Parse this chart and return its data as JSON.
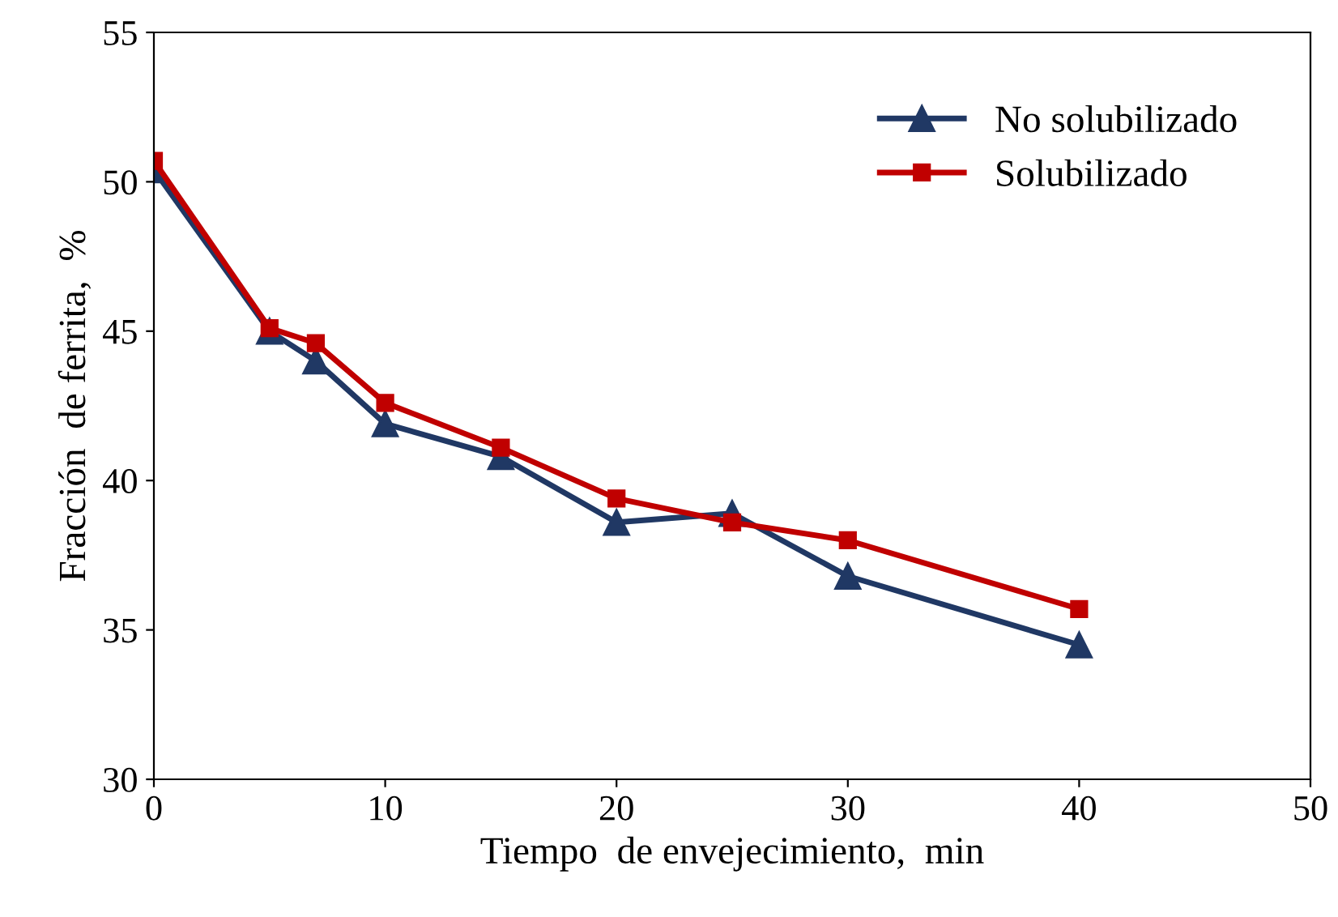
{
  "chart_data": {
    "type": "line",
    "xlabel": "Tiempo  de envejecimiento,  min",
    "ylabel": "Fracción  de ferrita,  %",
    "x": [
      0,
      5,
      7,
      10,
      15,
      20,
      25,
      30,
      40
    ],
    "series": [
      {
        "name": "No solubilizado",
        "color": "#203864",
        "marker": "triangle",
        "values": [
          50.4,
          45.0,
          44.0,
          41.9,
          40.8,
          38.6,
          38.9,
          36.8,
          34.5
        ]
      },
      {
        "name": "Solubilizado",
        "color": "#c00000",
        "marker": "square",
        "values": [
          50.7,
          45.1,
          44.6,
          42.6,
          41.1,
          39.4,
          38.6,
          38.0,
          35.7
        ]
      }
    ],
    "xlim": [
      0,
      50
    ],
    "xticks": [
      0,
      10,
      20,
      30,
      40,
      50
    ],
    "ylim": [
      30,
      55
    ],
    "yticks": [
      30,
      35,
      40,
      45,
      50,
      55
    ],
    "grid": false,
    "legend": "top right",
    "line_style": "solid"
  }
}
